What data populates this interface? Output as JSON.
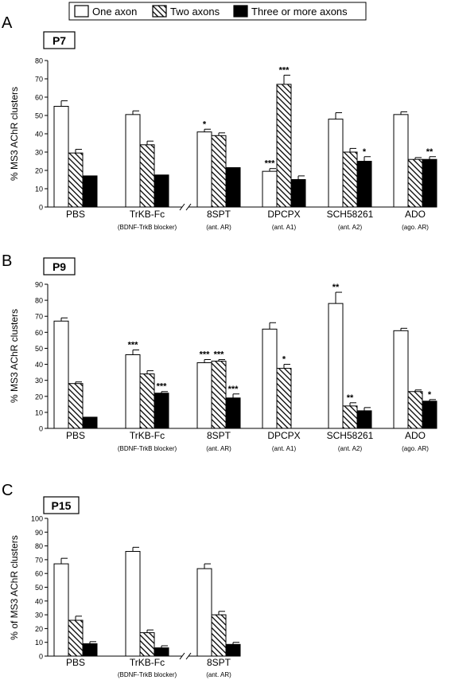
{
  "legend": {
    "items": [
      {
        "label": "One axon",
        "fill": "white"
      },
      {
        "label": "Two axons",
        "fill": "hatch"
      },
      {
        "label": "Three or more axons",
        "fill": "black"
      }
    ]
  },
  "colors": {
    "solid": "#000000",
    "open": "#ffffff",
    "axis": "#000000"
  },
  "chart_data": [
    {
      "type": "bar",
      "panel_letter": "A",
      "age_label": "P7",
      "ylabel": "% MS3 AChR clusters",
      "ylim": [
        0,
        80
      ],
      "yticks": [
        0,
        10,
        20,
        30,
        40,
        50,
        60,
        70,
        80
      ],
      "categories": [
        "PBS",
        "TrKB-Fc",
        "8SPT",
        "DPCPX",
        "SCH58261",
        "ADO"
      ],
      "sublabels": [
        "",
        "(BDNF-TrkB blocker)",
        "(ant. AR)",
        "(ant. A1)",
        "(ant. A2)",
        "(ago. AR)"
      ],
      "axis_break_after": 1,
      "series": [
        {
          "name": "One axon",
          "fill": "white",
          "values": [
            55,
            50.5,
            41,
            19.5,
            48,
            50.5
          ],
          "errors": [
            3,
            2,
            1.5,
            1.5,
            3.5,
            1.5
          ],
          "marks": [
            "",
            "",
            "*",
            "***",
            "",
            ""
          ]
        },
        {
          "name": "Two axons",
          "fill": "hatch",
          "values": [
            29.5,
            34,
            39,
            67,
            30,
            26
          ],
          "errors": [
            2,
            2,
            1.5,
            5,
            2,
            1
          ],
          "marks": [
            "",
            "",
            "",
            "***",
            "",
            ""
          ]
        },
        {
          "name": "Three or more axons",
          "fill": "black",
          "values": [
            17,
            17.5,
            21.5,
            15,
            25,
            26
          ],
          "errors": [
            0,
            0,
            0,
            2,
            2.5,
            1.5
          ],
          "marks": [
            "",
            "",
            "",
            "",
            "*",
            "**"
          ]
        }
      ]
    },
    {
      "type": "bar",
      "panel_letter": "B",
      "age_label": "P9",
      "ylabel": "% MS3 AChR clusters",
      "ylim": [
        0,
        90
      ],
      "yticks": [
        0,
        10,
        20,
        30,
        40,
        50,
        60,
        70,
        80,
        90
      ],
      "categories": [
        "PBS",
        "TrKB-Fc",
        "8SPT",
        "DPCPX",
        "SCH58261",
        "ADO"
      ],
      "sublabels": [
        "",
        "(BDNF-TrkB blocker)",
        "(ant. AR)",
        "(ant. A1)",
        "(ant. A2)",
        "(ago. AR)"
      ],
      "axis_break_after": -1,
      "series": [
        {
          "name": "One axon",
          "fill": "white",
          "values": [
            67,
            46,
            41,
            62,
            78,
            61
          ],
          "errors": [
            2,
            3,
            2,
            4,
            7,
            1.5
          ],
          "marks": [
            "",
            "***",
            "***",
            "",
            "**",
            ""
          ]
        },
        {
          "name": "Two axons",
          "fill": "hatch",
          "values": [
            28,
            34,
            42,
            37.5,
            14,
            23
          ],
          "errors": [
            1,
            2,
            1,
            2.5,
            2,
            1
          ],
          "marks": [
            "",
            "",
            "***",
            "*",
            "**",
            ""
          ]
        },
        {
          "name": "Three or more axons",
          "fill": "black",
          "values": [
            7,
            22,
            19,
            0,
            11,
            17
          ],
          "errors": [
            0,
            1,
            2.5,
            0,
            2,
            1
          ],
          "marks": [
            "",
            "***",
            "***",
            "",
            "",
            "*"
          ]
        }
      ]
    },
    {
      "type": "bar",
      "panel_letter": "C",
      "age_label": "P15",
      "ylabel": "% of MS3 AChR clusters",
      "ylim": [
        0,
        100
      ],
      "yticks": [
        0,
        10,
        20,
        30,
        40,
        50,
        60,
        70,
        80,
        90,
        100
      ],
      "categories": [
        "PBS",
        "TrKB-Fc",
        "8SPT"
      ],
      "sublabels": [
        "",
        "(BDNF-TrkB blocker)",
        "(ant. AR)"
      ],
      "axis_break_after": 1,
      "series": [
        {
          "name": "One axon",
          "fill": "white",
          "values": [
            67,
            76,
            63.5
          ],
          "errors": [
            4,
            3,
            3.5
          ],
          "marks": [
            "",
            "",
            ""
          ]
        },
        {
          "name": "Two axons",
          "fill": "hatch",
          "values": [
            26,
            17,
            30
          ],
          "errors": [
            3,
            2,
            2.5
          ],
          "marks": [
            "",
            "",
            ""
          ]
        },
        {
          "name": "Three or more axons",
          "fill": "black",
          "values": [
            9,
            6,
            8.5
          ],
          "errors": [
            1.5,
            1.5,
            1.5
          ],
          "marks": [
            "",
            "",
            ""
          ]
        }
      ]
    }
  ]
}
